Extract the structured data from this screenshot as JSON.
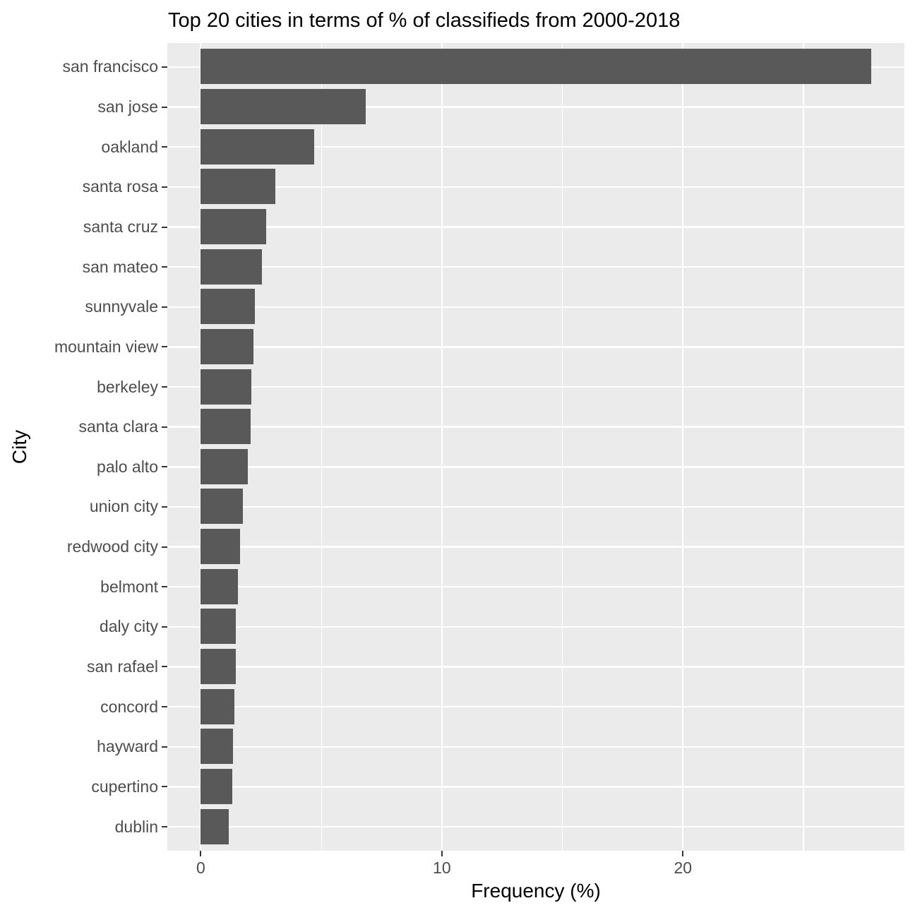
{
  "chart_data": {
    "type": "bar",
    "orientation": "horizontal",
    "title": "Top 20 cities in terms of % of classifieds from 2000-2018",
    "xlabel": "Frequency (%)",
    "ylabel": "City",
    "categories": [
      "san francisco",
      "san jose",
      "oakland",
      "santa rosa",
      "santa cruz",
      "san mateo",
      "sunnyvale",
      "mountain view",
      "berkeley",
      "santa clara",
      "palo alto",
      "union city",
      "redwood city",
      "belmont",
      "daly city",
      "san rafael",
      "concord",
      "hayward",
      "cupertino",
      "dublin"
    ],
    "values": [
      27.8,
      6.85,
      4.7,
      3.1,
      2.72,
      2.54,
      2.25,
      2.19,
      2.1,
      2.07,
      1.95,
      1.74,
      1.64,
      1.55,
      1.46,
      1.44,
      1.4,
      1.33,
      1.3,
      1.17
    ],
    "xlim": [
      0,
      27.8
    ],
    "x_ticks_major": [
      0,
      10,
      20
    ],
    "x_ticks_minor": [
      5,
      15,
      25
    ],
    "x_tick_labels": [
      "0",
      "10",
      "20"
    ],
    "legend_position": "none",
    "grid": "on",
    "colors": {
      "bar": "#595959",
      "panel_background": "#EBEBEB",
      "gridline": "#FFFFFF",
      "axis_text": "#4D4D4D",
      "title_text": "#000000",
      "tick_mark": "#333333",
      "figure_background": "#FFFFFF"
    }
  }
}
